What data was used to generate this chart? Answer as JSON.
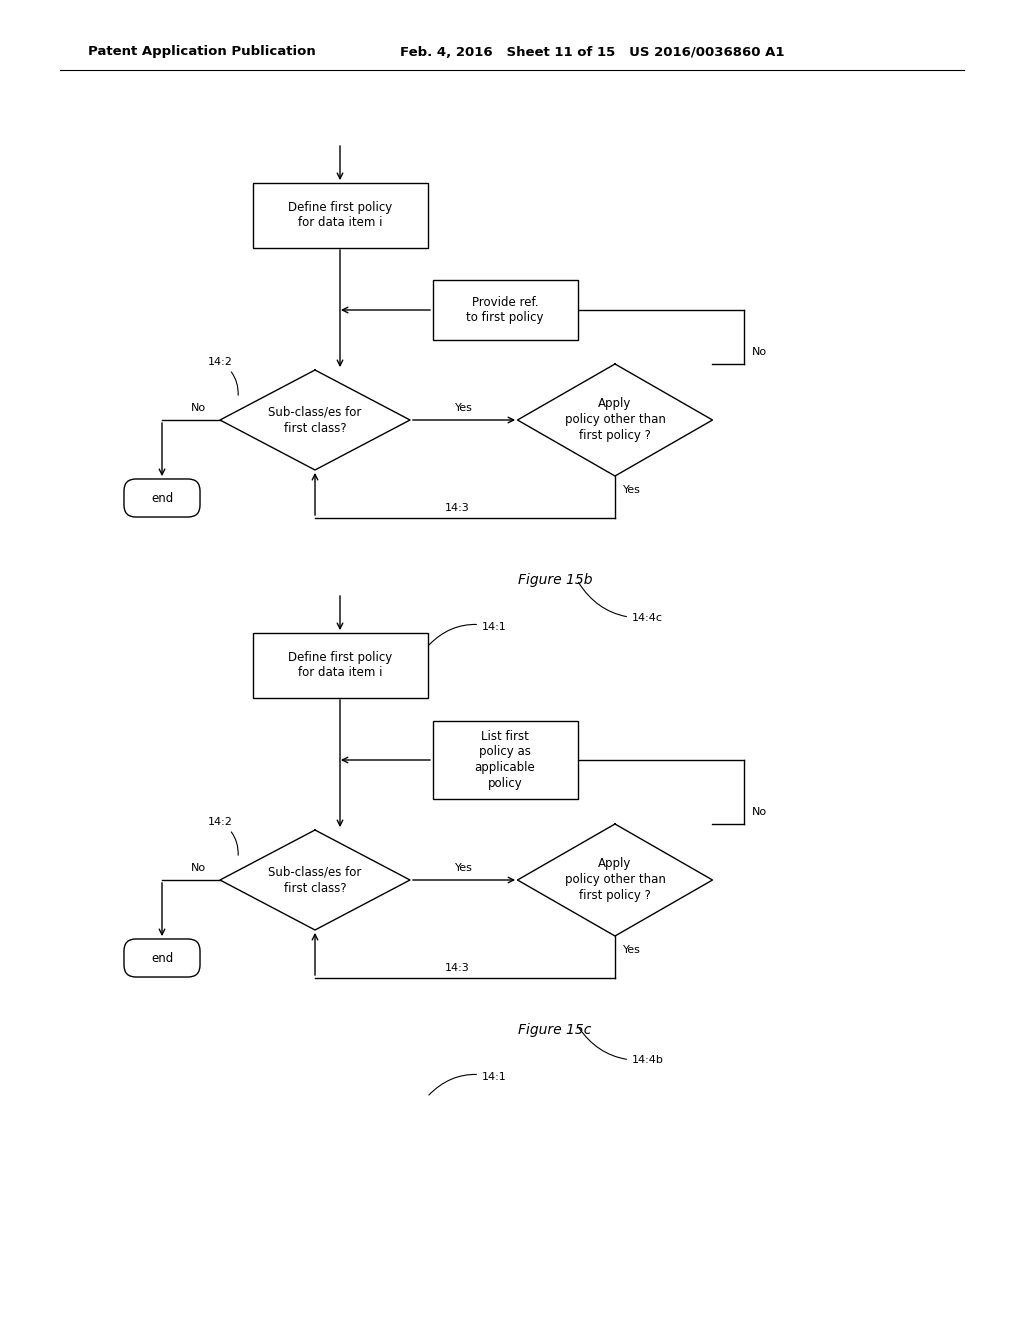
{
  "background_color": "#ffffff",
  "header_line1": "Patent Application Publication",
  "header_line2": "Feb. 4, 2016",
  "header_line3": "Sheet 11 of 15",
  "header_line4": "US 2016/0036860 A1",
  "figure_label_b": "Figure 15b",
  "figure_label_c": "Figure 15c"
}
